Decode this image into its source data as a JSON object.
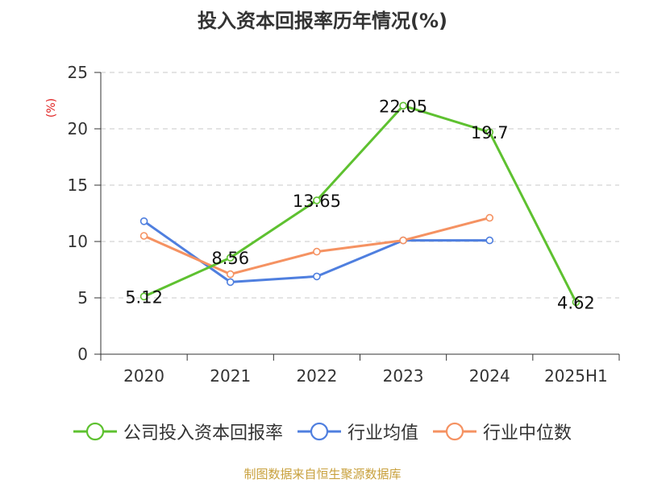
{
  "chart_data": {
    "type": "line",
    "title": "投入资本回报率历年情况(%)",
    "ylabel": "(%)",
    "ylim": [
      0,
      25
    ],
    "yticks": [
      0,
      5,
      10,
      15,
      20,
      25
    ],
    "categories": [
      "2020",
      "2021",
      "2022",
      "2023",
      "2024",
      "2025H1"
    ],
    "grid": "horizontal dashed",
    "legend_position": "bottom",
    "series": [
      {
        "name": "公司投入资本回报率",
        "color": "#5ec130",
        "values": [
          5.12,
          8.56,
          13.65,
          22.05,
          19.7,
          4.62
        ],
        "labels": [
          "5.12",
          "8.56",
          "13.65",
          "22.05",
          "19.7",
          "4.62"
        ]
      },
      {
        "name": "行业均值",
        "color": "#4f7fdf",
        "values": [
          11.8,
          6.4,
          6.9,
          10.1,
          10.1,
          null
        ]
      },
      {
        "name": "行业中位数",
        "color": "#f59262",
        "values": [
          10.5,
          7.1,
          9.1,
          10.1,
          12.1,
          null
        ]
      }
    ]
  },
  "source": "制图数据来自恒生聚源数据库",
  "colors": {
    "source": "#c8a03c",
    "unit": "#e02020"
  }
}
